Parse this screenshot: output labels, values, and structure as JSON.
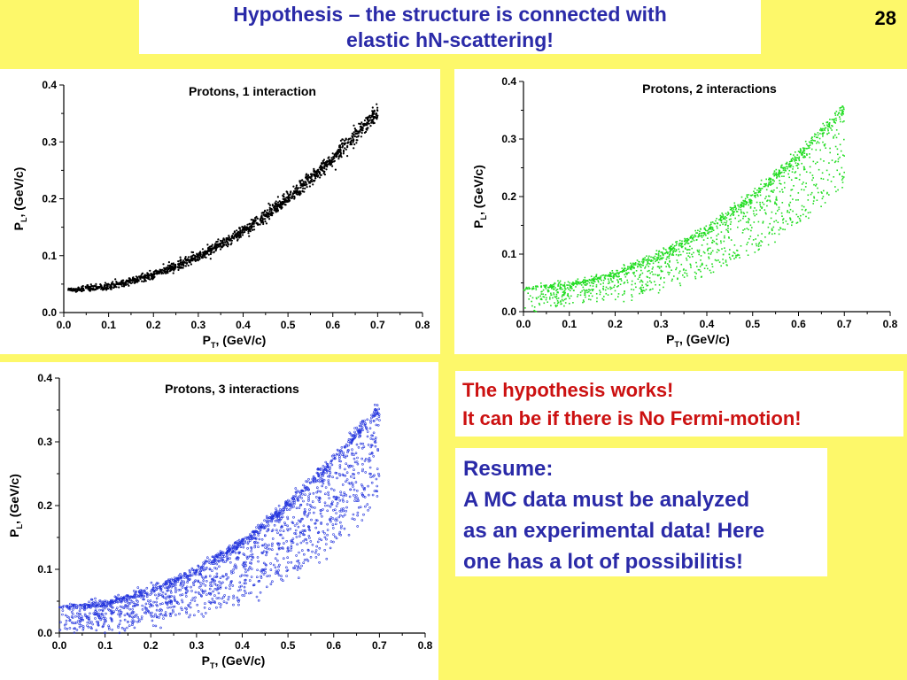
{
  "slide": {
    "title_line1": "Hypothesis – the structure is connected with",
    "title_line2": "elastic hN-scattering!",
    "page_number": "28",
    "background_color": "#fdf86a",
    "title_color": "#2a2aa8"
  },
  "notes": {
    "red_line1": "The hypothesis works!",
    "red_line2": "It can be if there is No Fermi-motion!",
    "red_color": "#cc1111",
    "resume_line1": "Resume:",
    "resume_line2": "A MC data must be analyzed",
    "resume_line3": "as an experimental data! Here",
    "resume_line4": "one has a lot of possibilitis!",
    "resume_color": "#2a2aa8"
  },
  "chart_data": [
    {
      "type": "scatter",
      "title": "Protons, 1 interaction",
      "xlabel_main": "P",
      "xlabel_sub": "T",
      "xlabel_rest": ", (GeV/c)",
      "ylabel_main": "P",
      "ylabel_sub": "L",
      "ylabel_rest": ", (GeV/c)",
      "xlim": [
        0.0,
        0.8
      ],
      "ylim": [
        0.0,
        0.4
      ],
      "xticks": [
        "0.0",
        "0.1",
        "0.2",
        "0.3",
        "0.4",
        "0.5",
        "0.6",
        "0.7",
        "0.8"
      ],
      "yticks": [
        "0.0",
        "0.1",
        "0.2",
        "0.3",
        "0.4"
      ],
      "color": "#000000",
      "curve": "pL ≈ 0.04 + 0.64·pT² (tight band along curve)",
      "x_range_points": [
        0.01,
        0.7
      ],
      "series": [
        {
          "values": [
            [
              0.01,
              0.04
            ],
            [
              0.1,
              0.046
            ],
            [
              0.2,
              0.066
            ],
            [
              0.3,
              0.098
            ],
            [
              0.4,
              0.142
            ],
            [
              0.5,
              0.2
            ],
            [
              0.6,
              0.27
            ],
            [
              0.7,
              0.354
            ]
          ]
        }
      ]
    },
    {
      "type": "scatter",
      "title": "Protons, 2 interactions",
      "xlabel_main": "P",
      "xlabel_sub": "T",
      "xlabel_rest": ", (GeV/c)",
      "ylabel_main": "P",
      "ylabel_sub": "L",
      "ylabel_rest": ", (GeV/c)",
      "xlim": [
        0.0,
        0.8
      ],
      "ylim": [
        0.0,
        0.4
      ],
      "xticks": [
        "0.0",
        "0.1",
        "0.2",
        "0.3",
        "0.4",
        "0.5",
        "0.6",
        "0.7",
        "0.8"
      ],
      "yticks": [
        "0.0",
        "0.1",
        "0.2",
        "0.3",
        "0.4"
      ],
      "color": "#22dd22",
      "curve": "upper band pL ≈ 0.04 + 0.64·pT², with scatter below down to pL ≈ 0",
      "x_range_points": [
        0.0,
        0.7
      ],
      "series": [
        {
          "values": [
            [
              0.0,
              0.04
            ],
            [
              0.1,
              0.046
            ],
            [
              0.2,
              0.066
            ],
            [
              0.3,
              0.098
            ],
            [
              0.4,
              0.142
            ],
            [
              0.5,
              0.2
            ],
            [
              0.6,
              0.27
            ],
            [
              0.7,
              0.354
            ]
          ]
        }
      ]
    },
    {
      "type": "scatter",
      "title": "Protons, 3 interactions",
      "xlabel_main": "P",
      "xlabel_sub": "T",
      "xlabel_rest": ", (GeV/c)",
      "ylabel_main": "P",
      "ylabel_sub": "L",
      "ylabel_rest": ", (GeV/c)",
      "xlim": [
        0.0,
        0.8
      ],
      "ylim": [
        0.0,
        0.4
      ],
      "xticks": [
        "0.0",
        "0.1",
        "0.2",
        "0.3",
        "0.4",
        "0.5",
        "0.6",
        "0.7",
        "0.8"
      ],
      "yticks": [
        "0.0",
        "0.1",
        "0.2",
        "0.3",
        "0.4"
      ],
      "color": "#2233dd",
      "curve": "upper band pL ≈ 0.04 + 0.64·pT², wider scatter below down to pL ≈ 0",
      "x_range_points": [
        0.0,
        0.7
      ],
      "series": [
        {
          "values": [
            [
              0.0,
              0.04
            ],
            [
              0.1,
              0.046
            ],
            [
              0.2,
              0.066
            ],
            [
              0.3,
              0.098
            ],
            [
              0.4,
              0.142
            ],
            [
              0.5,
              0.2
            ],
            [
              0.6,
              0.27
            ],
            [
              0.7,
              0.354
            ]
          ]
        }
      ]
    }
  ]
}
